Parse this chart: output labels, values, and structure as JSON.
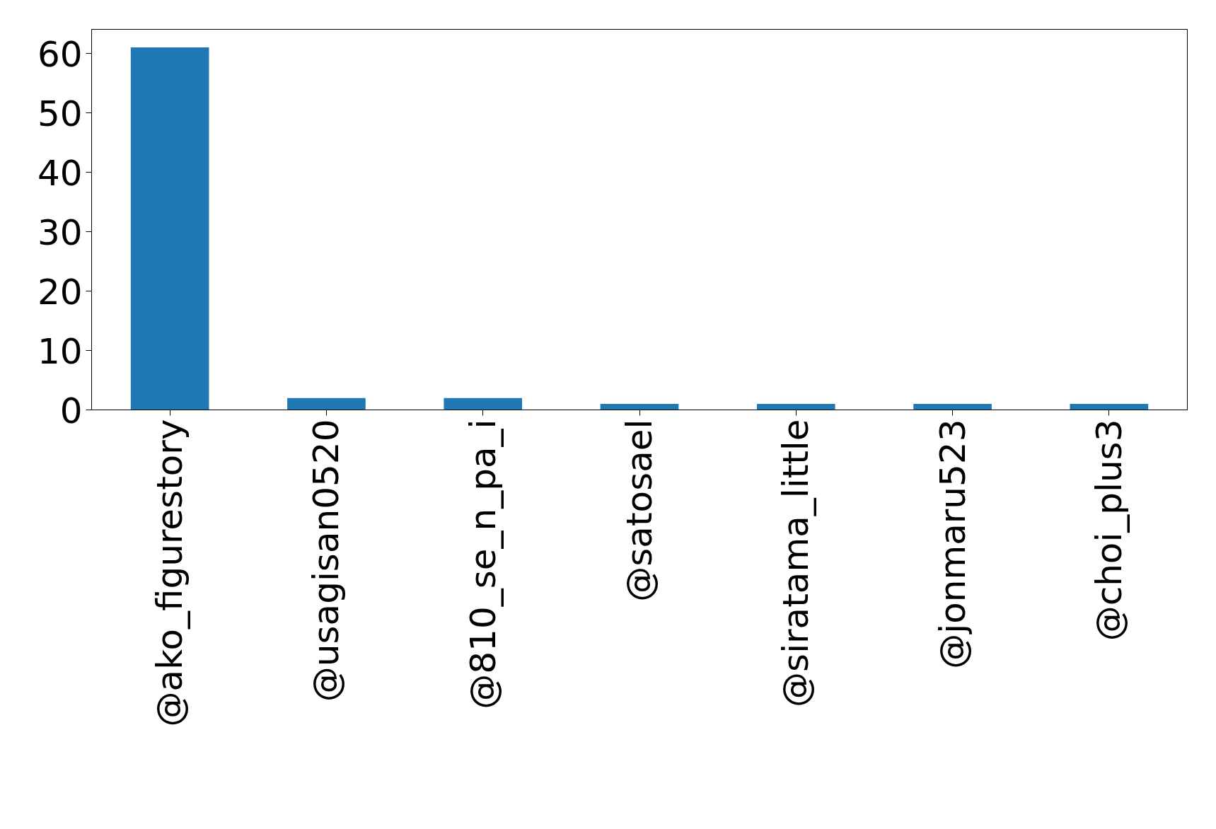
{
  "chart_data": {
    "type": "bar",
    "categories": [
      "@ako_figurestory",
      "@usagisan0520",
      "@810_se_n_pa_i",
      "@satosael",
      "@siratama_little",
      "@jonmaru523",
      "@choi_plus3"
    ],
    "values": [
      61,
      2,
      2,
      1,
      1,
      1,
      1
    ],
    "color": "#1f77b4",
    "ylim": [
      0,
      64.05
    ],
    "yticks": [
      0,
      10,
      20,
      30,
      40,
      50,
      60
    ],
    "grid": false
  }
}
